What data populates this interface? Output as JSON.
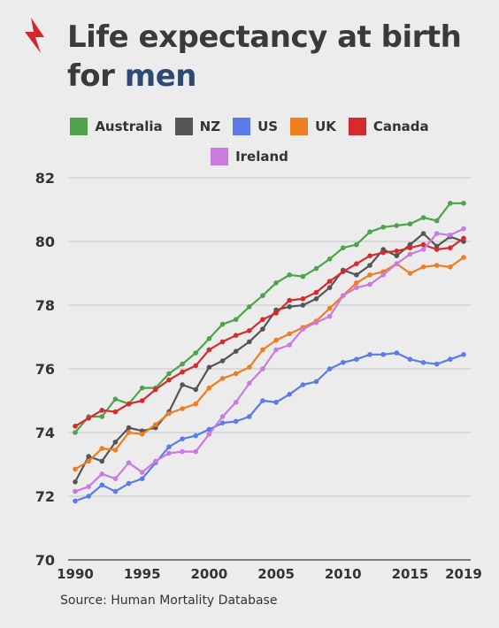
{
  "title_part1": "Life expectancy at birth",
  "title_part2": "for ",
  "title_highlight": "men",
  "source": "Source: Human Mortality Database",
  "chart_data": {
    "type": "line",
    "title": "Life expectancy at birth for men",
    "xlabel": "",
    "ylabel": "",
    "ylim": [
      70,
      82
    ],
    "xlim": [
      1990,
      2019
    ],
    "yticks": [
      70,
      72,
      74,
      76,
      78,
      80,
      82
    ],
    "xticks": [
      1990,
      1995,
      2000,
      2005,
      2010,
      2015,
      2019
    ],
    "grid": "horizontal",
    "legend_position": "top",
    "x": [
      1990,
      1991,
      1992,
      1993,
      1994,
      1995,
      1996,
      1997,
      1998,
      1999,
      2000,
      2001,
      2002,
      2003,
      2004,
      2005,
      2006,
      2007,
      2008,
      2009,
      2010,
      2011,
      2012,
      2013,
      2014,
      2015,
      2016,
      2017,
      2018,
      2019
    ],
    "series": [
      {
        "name": "Australia",
        "color": "#4ea34a",
        "values": [
          74.0,
          74.5,
          74.5,
          75.05,
          74.9,
          75.4,
          75.4,
          75.85,
          76.15,
          76.5,
          76.95,
          77.4,
          77.55,
          77.95,
          78.3,
          78.7,
          78.95,
          78.9,
          79.15,
          79.45,
          79.8,
          79.9,
          80.3,
          80.45,
          80.5,
          80.55,
          80.75,
          80.65,
          81.2,
          81.2
        ]
      },
      {
        "name": "NZ",
        "color": "#555555",
        "values": [
          72.45,
          73.25,
          73.1,
          73.7,
          74.15,
          74.05,
          74.15,
          74.65,
          75.5,
          75.35,
          76.05,
          76.25,
          76.55,
          76.85,
          77.25,
          77.85,
          77.95,
          78.0,
          78.2,
          78.55,
          79.1,
          78.95,
          79.25,
          79.75,
          79.55,
          79.9,
          80.25,
          79.85,
          80.15,
          80.0
        ]
      },
      {
        "name": "US",
        "color": "#5b7be8",
        "values": [
          71.85,
          72.0,
          72.35,
          72.15,
          72.4,
          72.55,
          73.05,
          73.55,
          73.8,
          73.9,
          74.1,
          74.3,
          74.35,
          74.5,
          75.0,
          74.95,
          75.2,
          75.5,
          75.6,
          76.0,
          76.2,
          76.3,
          76.45,
          76.45,
          76.5,
          76.3,
          76.2,
          76.15,
          76.3,
          76.45
        ]
      },
      {
        "name": "UK",
        "color": "#ef7d22",
        "values": [
          72.85,
          73.1,
          73.5,
          73.45,
          74.0,
          73.95,
          74.25,
          74.6,
          74.75,
          74.9,
          75.4,
          75.7,
          75.85,
          76.05,
          76.6,
          76.9,
          77.1,
          77.3,
          77.5,
          77.9,
          78.3,
          78.7,
          78.95,
          79.05,
          79.3,
          79.0,
          79.2,
          79.25,
          79.2,
          79.5
        ]
      },
      {
        "name": "Canada",
        "color": "#d52b2e",
        "values": [
          74.2,
          74.45,
          74.7,
          74.65,
          74.9,
          75.0,
          75.35,
          75.65,
          75.9,
          76.1,
          76.6,
          76.85,
          77.05,
          77.2,
          77.55,
          77.75,
          78.15,
          78.2,
          78.4,
          78.75,
          79.05,
          79.3,
          79.55,
          79.65,
          79.7,
          79.8,
          79.9,
          79.75,
          79.8,
          80.1
        ]
      },
      {
        "name": "Ireland",
        "color": "#c97be0",
        "values": [
          72.15,
          72.3,
          72.7,
          72.55,
          73.05,
          72.75,
          73.1,
          73.35,
          73.4,
          73.4,
          73.95,
          74.5,
          74.95,
          75.55,
          76.0,
          76.6,
          76.75,
          77.25,
          77.45,
          77.65,
          78.3,
          78.55,
          78.65,
          78.95,
          79.3,
          79.6,
          79.75,
          80.25,
          80.2,
          80.4
        ]
      }
    ]
  }
}
